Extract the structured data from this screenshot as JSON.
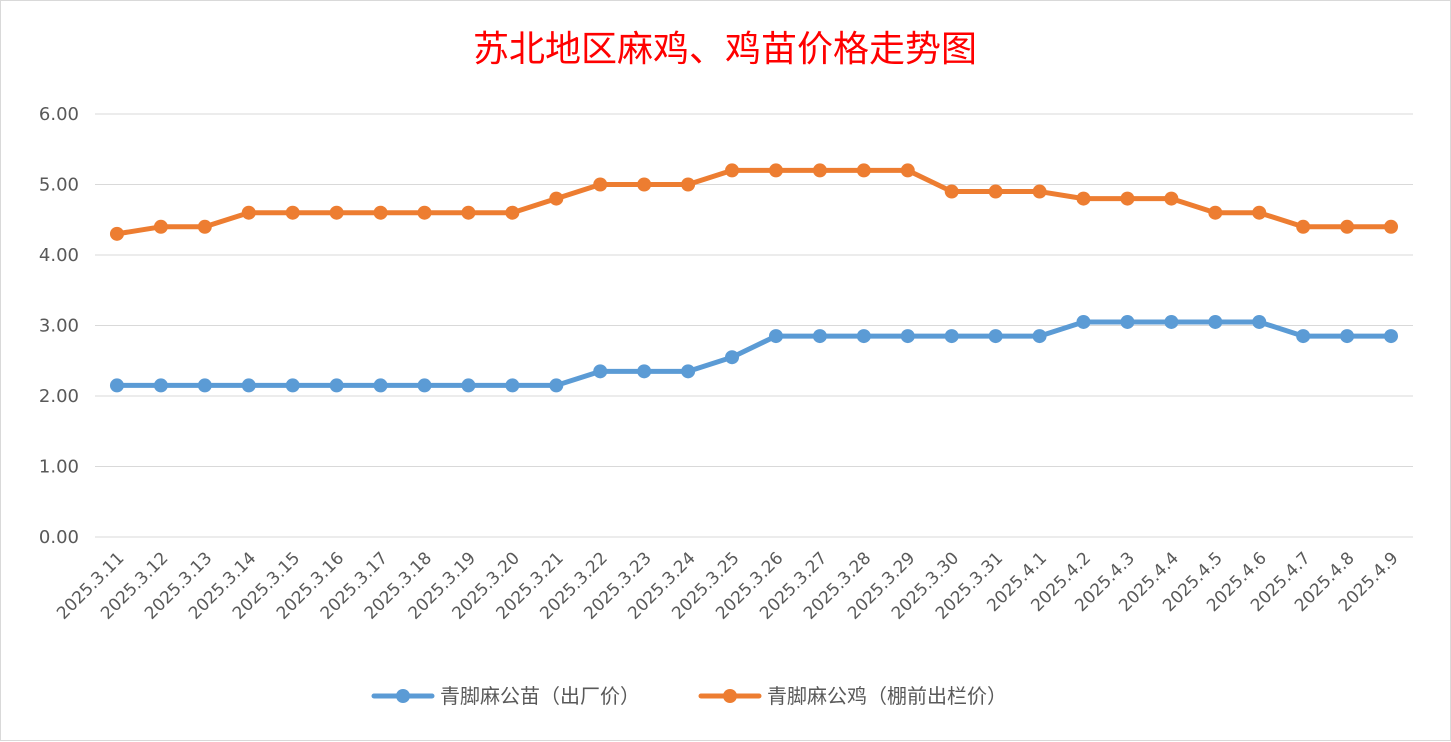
{
  "chart_data": {
    "type": "line",
    "title": "苏北地区麻鸡、鸡苗价格走势图",
    "xlabel": "",
    "ylabel": "",
    "ylim": [
      0,
      6
    ],
    "yticks": [
      "0.00",
      "1.00",
      "2.00",
      "3.00",
      "4.00",
      "5.00",
      "6.00"
    ],
    "grid": true,
    "legend_position": "bottom",
    "categories": [
      "2025.3.11",
      "2025.3.12",
      "2025.3.13",
      "2025.3.14",
      "2025.3.15",
      "2025.3.16",
      "2025.3.17",
      "2025.3.18",
      "2025.3.19",
      "2025.3.20",
      "2025.3.21",
      "2025.3.22",
      "2025.3.23",
      "2025.3.24",
      "2025.3.25",
      "2025.3.26",
      "2025.3.27",
      "2025.3.28",
      "2025.3.29",
      "2025.3.30",
      "2025.3.31",
      "2025.4.1",
      "2025.4.2",
      "2025.4.3",
      "2025.4.4",
      "2025.4.5",
      "2025.4.6",
      "2025.4.7",
      "2025.4.8",
      "2025.4.9"
    ],
    "series": [
      {
        "name": "青脚麻公苗（出厂价）",
        "color": "#5b9bd5",
        "values": [
          2.15,
          2.15,
          2.15,
          2.15,
          2.15,
          2.15,
          2.15,
          2.15,
          2.15,
          2.15,
          2.15,
          2.35,
          2.35,
          2.35,
          2.55,
          2.85,
          2.85,
          2.85,
          2.85,
          2.85,
          2.85,
          2.85,
          3.05,
          3.05,
          3.05,
          3.05,
          3.05,
          2.85,
          2.85,
          2.85
        ]
      },
      {
        "name": "青脚麻公鸡（棚前出栏价）",
        "color": "#ed7d31",
        "values": [
          4.3,
          4.4,
          4.4,
          4.6,
          4.6,
          4.6,
          4.6,
          4.6,
          4.6,
          4.6,
          4.8,
          5.0,
          5.0,
          5.0,
          5.2,
          5.2,
          5.2,
          5.2,
          5.2,
          4.9,
          4.9,
          4.9,
          4.8,
          4.8,
          4.8,
          4.6,
          4.6,
          4.4,
          4.4,
          4.4
        ]
      }
    ]
  }
}
